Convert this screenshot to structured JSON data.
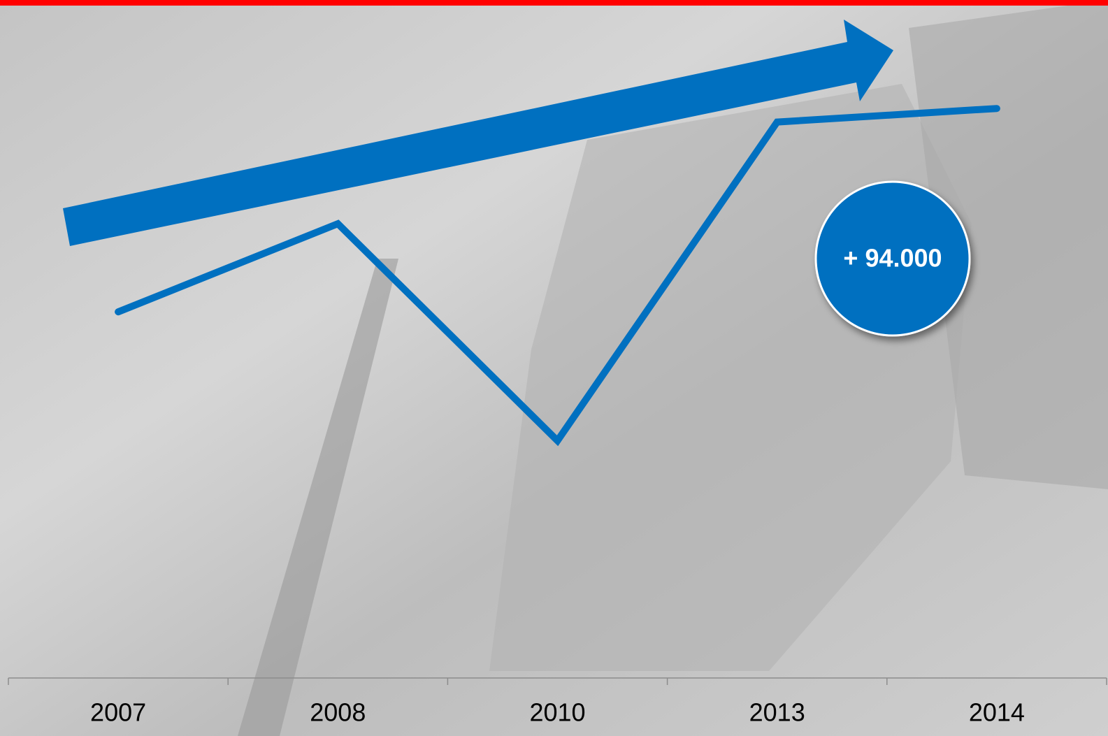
{
  "chart_data": {
    "type": "line",
    "categories": [
      "2007",
      "2008",
      "2010",
      "2013",
      "2014"
    ],
    "series": [
      {
        "color": "#0070c0",
        "values": [
          54,
          67,
          35,
          82,
          84
        ]
      }
    ],
    "ylim": [
      0,
      100
    ],
    "annotation": "+ 94.000"
  }
}
